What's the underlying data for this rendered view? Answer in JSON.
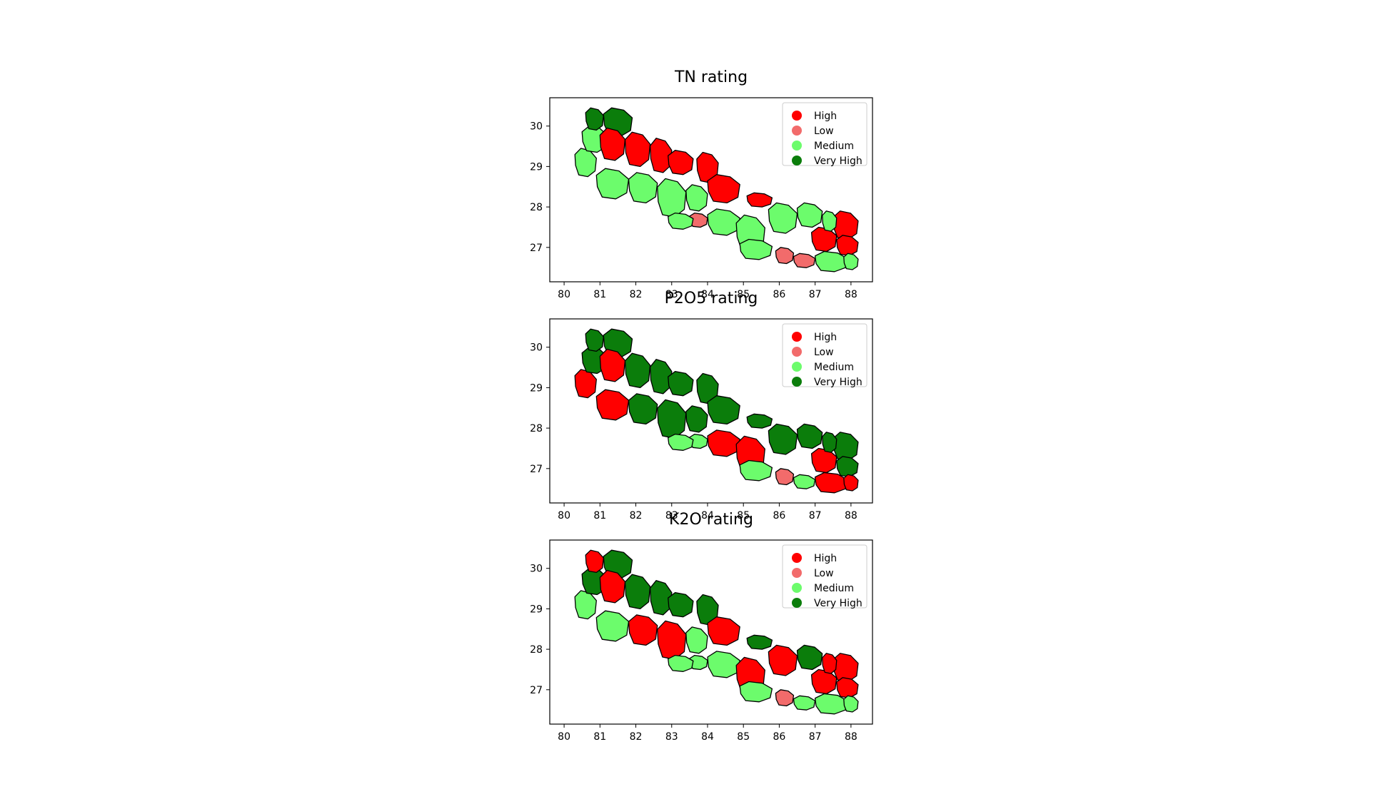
{
  "colors": {
    "High": "#ff0000",
    "Low": "#f26b6b",
    "Medium": "#6cfc6c",
    "Very High": "#0b7d0b"
  },
  "legend": {
    "placement": "top-right",
    "entries": [
      "High",
      "Low",
      "Medium",
      "Very High"
    ]
  },
  "xticks": [
    80,
    81,
    82,
    83,
    84,
    85,
    86,
    87,
    88
  ],
  "yticks": [
    27,
    28,
    29,
    30
  ],
  "xlim": [
    79.6,
    88.6
  ],
  "ylim": [
    26.15,
    30.7
  ],
  "chart_data": [
    {
      "type": "choropleth",
      "title": "TN rating",
      "legend_entries": [
        "High",
        "Low",
        "Medium",
        "Very High"
      ],
      "regions": [
        {
          "lon": [
            80.3,
            80.9
          ],
          "lat": [
            28.75,
            29.45
          ],
          "rating": "Medium"
        },
        {
          "lon": [
            80.5,
            81.2
          ],
          "lat": [
            29.35,
            30.0
          ],
          "rating": "Medium"
        },
        {
          "lon": [
            80.6,
            81.1
          ],
          "lat": [
            29.9,
            30.45
          ],
          "rating": "Very High"
        },
        {
          "lon": [
            81.1,
            81.9
          ],
          "lat": [
            29.75,
            30.45
          ],
          "rating": "Very High"
        },
        {
          "lon": [
            81.0,
            81.7
          ],
          "lat": [
            29.15,
            29.95
          ],
          "rating": "High"
        },
        {
          "lon": [
            81.7,
            82.4
          ],
          "lat": [
            29.0,
            29.85
          ],
          "rating": "High"
        },
        {
          "lon": [
            82.4,
            83.0
          ],
          "lat": [
            28.85,
            29.7
          ],
          "rating": "High"
        },
        {
          "lon": [
            82.9,
            83.6
          ],
          "lat": [
            28.8,
            29.4
          ],
          "rating": "High"
        },
        {
          "lon": [
            83.7,
            84.3
          ],
          "lat": [
            28.6,
            29.35
          ],
          "rating": "High"
        },
        {
          "lon": [
            84.0,
            84.9
          ],
          "lat": [
            28.1,
            28.8
          ],
          "rating": "High"
        },
        {
          "lon": [
            85.1,
            85.8
          ],
          "lat": [
            28.0,
            28.35
          ],
          "rating": "High"
        },
        {
          "lon": [
            86.9,
            87.6
          ],
          "lat": [
            26.9,
            27.5
          ],
          "rating": "High"
        },
        {
          "lon": [
            87.5,
            88.2
          ],
          "lat": [
            27.2,
            27.9
          ],
          "rating": "High"
        },
        {
          "lon": [
            87.6,
            88.2
          ],
          "lat": [
            26.8,
            27.3
          ],
          "rating": "High"
        },
        {
          "lon": [
            83.5,
            84.0
          ],
          "lat": [
            27.5,
            27.85
          ],
          "rating": "Low"
        },
        {
          "lon": [
            85.9,
            86.4
          ],
          "lat": [
            26.6,
            27.0
          ],
          "rating": "Low"
        },
        {
          "lon": [
            86.4,
            87.0
          ],
          "lat": [
            26.5,
            26.85
          ],
          "rating": "Low"
        },
        {
          "lon": [
            80.9,
            81.8
          ],
          "lat": [
            28.2,
            28.95
          ],
          "rating": "Medium"
        },
        {
          "lon": [
            81.8,
            82.6
          ],
          "lat": [
            28.1,
            28.85
          ],
          "rating": "Medium"
        },
        {
          "lon": [
            82.6,
            83.4
          ],
          "lat": [
            27.75,
            28.7
          ],
          "rating": "Medium"
        },
        {
          "lon": [
            83.4,
            84.0
          ],
          "lat": [
            27.9,
            28.55
          ],
          "rating": "Medium"
        },
        {
          "lon": [
            82.9,
            83.6
          ],
          "lat": [
            27.45,
            27.85
          ],
          "rating": "Medium"
        },
        {
          "lon": [
            84.0,
            84.9
          ],
          "lat": [
            27.3,
            27.95
          ],
          "rating": "Medium"
        },
        {
          "lon": [
            84.8,
            85.6
          ],
          "lat": [
            26.9,
            27.8
          ],
          "rating": "Medium"
        },
        {
          "lon": [
            85.7,
            86.5
          ],
          "lat": [
            27.35,
            28.1
          ],
          "rating": "Medium"
        },
        {
          "lon": [
            86.5,
            87.2
          ],
          "lat": [
            27.5,
            28.1
          ],
          "rating": "Medium"
        },
        {
          "lon": [
            87.2,
            87.6
          ],
          "lat": [
            27.4,
            27.9
          ],
          "rating": "Medium"
        },
        {
          "lon": [
            84.9,
            85.8
          ],
          "lat": [
            26.7,
            27.2
          ],
          "rating": "Medium"
        },
        {
          "lon": [
            87.0,
            87.9
          ],
          "lat": [
            26.4,
            26.9
          ],
          "rating": "Medium"
        },
        {
          "lon": [
            87.8,
            88.2
          ],
          "lat": [
            26.45,
            26.85
          ],
          "rating": "Medium"
        }
      ]
    },
    {
      "type": "choropleth",
      "title": "P2O5 rating",
      "legend_entries": [
        "High",
        "Low",
        "Medium",
        "Very High"
      ],
      "regions": [
        {
          "lon": [
            80.3,
            80.9
          ],
          "lat": [
            28.75,
            29.45
          ],
          "rating": "High"
        },
        {
          "lon": [
            80.5,
            81.2
          ],
          "lat": [
            29.35,
            30.0
          ],
          "rating": "Very High"
        },
        {
          "lon": [
            80.6,
            81.1
          ],
          "lat": [
            29.9,
            30.45
          ],
          "rating": "Very High"
        },
        {
          "lon": [
            81.1,
            81.9
          ],
          "lat": [
            29.75,
            30.45
          ],
          "rating": "Very High"
        },
        {
          "lon": [
            81.0,
            81.7
          ],
          "lat": [
            29.15,
            29.95
          ],
          "rating": "High"
        },
        {
          "lon": [
            81.7,
            82.4
          ],
          "lat": [
            29.0,
            29.85
          ],
          "rating": "Very High"
        },
        {
          "lon": [
            82.4,
            83.0
          ],
          "lat": [
            28.85,
            29.7
          ],
          "rating": "Very High"
        },
        {
          "lon": [
            82.9,
            83.6
          ],
          "lat": [
            28.8,
            29.4
          ],
          "rating": "Very High"
        },
        {
          "lon": [
            83.7,
            84.3
          ],
          "lat": [
            28.6,
            29.35
          ],
          "rating": "Very High"
        },
        {
          "lon": [
            84.0,
            84.9
          ],
          "lat": [
            28.1,
            28.8
          ],
          "rating": "Very High"
        },
        {
          "lon": [
            85.1,
            85.8
          ],
          "lat": [
            28.0,
            28.35
          ],
          "rating": "Very High"
        },
        {
          "lon": [
            86.9,
            87.6
          ],
          "lat": [
            26.9,
            27.5
          ],
          "rating": "High"
        },
        {
          "lon": [
            87.5,
            88.2
          ],
          "lat": [
            27.2,
            27.9
          ],
          "rating": "Very High"
        },
        {
          "lon": [
            87.6,
            88.2
          ],
          "lat": [
            26.8,
            27.3
          ],
          "rating": "Very High"
        },
        {
          "lon": [
            83.5,
            84.0
          ],
          "lat": [
            27.5,
            27.85
          ],
          "rating": "Medium"
        },
        {
          "lon": [
            85.9,
            86.4
          ],
          "lat": [
            26.6,
            27.0
          ],
          "rating": "Low"
        },
        {
          "lon": [
            86.4,
            87.0
          ],
          "lat": [
            26.5,
            26.85
          ],
          "rating": "Medium"
        },
        {
          "lon": [
            80.9,
            81.8
          ],
          "lat": [
            28.2,
            28.95
          ],
          "rating": "High"
        },
        {
          "lon": [
            81.8,
            82.6
          ],
          "lat": [
            28.1,
            28.85
          ],
          "rating": "Very High"
        },
        {
          "lon": [
            82.6,
            83.4
          ],
          "lat": [
            27.75,
            28.7
          ],
          "rating": "Very High"
        },
        {
          "lon": [
            83.4,
            84.0
          ],
          "lat": [
            27.9,
            28.55
          ],
          "rating": "Very High"
        },
        {
          "lon": [
            82.9,
            83.6
          ],
          "lat": [
            27.45,
            27.85
          ],
          "rating": "Medium"
        },
        {
          "lon": [
            84.0,
            84.9
          ],
          "lat": [
            27.3,
            27.95
          ],
          "rating": "High"
        },
        {
          "lon": [
            84.8,
            85.6
          ],
          "lat": [
            26.9,
            27.8
          ],
          "rating": "High"
        },
        {
          "lon": [
            85.7,
            86.5
          ],
          "lat": [
            27.35,
            28.1
          ],
          "rating": "Very High"
        },
        {
          "lon": [
            86.5,
            87.2
          ],
          "lat": [
            27.5,
            28.1
          ],
          "rating": "Very High"
        },
        {
          "lon": [
            87.2,
            87.6
          ],
          "lat": [
            27.4,
            27.9
          ],
          "rating": "Very High"
        },
        {
          "lon": [
            84.9,
            85.8
          ],
          "lat": [
            26.7,
            27.2
          ],
          "rating": "Medium"
        },
        {
          "lon": [
            87.0,
            87.9
          ],
          "lat": [
            26.4,
            26.9
          ],
          "rating": "High"
        },
        {
          "lon": [
            87.8,
            88.2
          ],
          "lat": [
            26.45,
            26.85
          ],
          "rating": "High"
        }
      ]
    },
    {
      "type": "choropleth",
      "title": "K2O rating",
      "legend_entries": [
        "High",
        "Low",
        "Medium",
        "Very High"
      ],
      "regions": [
        {
          "lon": [
            80.3,
            80.9
          ],
          "lat": [
            28.75,
            29.45
          ],
          "rating": "Medium"
        },
        {
          "lon": [
            80.5,
            81.2
          ],
          "lat": [
            29.35,
            30.0
          ],
          "rating": "Very High"
        },
        {
          "lon": [
            80.6,
            81.1
          ],
          "lat": [
            29.9,
            30.45
          ],
          "rating": "High"
        },
        {
          "lon": [
            81.1,
            81.9
          ],
          "lat": [
            29.75,
            30.45
          ],
          "rating": "Very High"
        },
        {
          "lon": [
            81.0,
            81.7
          ],
          "lat": [
            29.15,
            29.95
          ],
          "rating": "High"
        },
        {
          "lon": [
            81.7,
            82.4
          ],
          "lat": [
            29.0,
            29.85
          ],
          "rating": "Very High"
        },
        {
          "lon": [
            82.4,
            83.0
          ],
          "lat": [
            28.85,
            29.7
          ],
          "rating": "Very High"
        },
        {
          "lon": [
            82.9,
            83.6
          ],
          "lat": [
            28.8,
            29.4
          ],
          "rating": "Very High"
        },
        {
          "lon": [
            83.7,
            84.3
          ],
          "lat": [
            28.6,
            29.35
          ],
          "rating": "Very High"
        },
        {
          "lon": [
            84.0,
            84.9
          ],
          "lat": [
            28.1,
            28.8
          ],
          "rating": "High"
        },
        {
          "lon": [
            85.1,
            85.8
          ],
          "lat": [
            28.0,
            28.35
          ],
          "rating": "Very High"
        },
        {
          "lon": [
            86.9,
            87.6
          ],
          "lat": [
            26.9,
            27.5
          ],
          "rating": "High"
        },
        {
          "lon": [
            87.5,
            88.2
          ],
          "lat": [
            27.2,
            27.9
          ],
          "rating": "High"
        },
        {
          "lon": [
            87.6,
            88.2
          ],
          "lat": [
            26.8,
            27.3
          ],
          "rating": "High"
        },
        {
          "lon": [
            83.5,
            84.0
          ],
          "lat": [
            27.5,
            27.85
          ],
          "rating": "Medium"
        },
        {
          "lon": [
            85.9,
            86.4
          ],
          "lat": [
            26.6,
            27.0
          ],
          "rating": "Low"
        },
        {
          "lon": [
            86.4,
            87.0
          ],
          "lat": [
            26.5,
            26.85
          ],
          "rating": "Medium"
        },
        {
          "lon": [
            80.9,
            81.8
          ],
          "lat": [
            28.2,
            28.95
          ],
          "rating": "Medium"
        },
        {
          "lon": [
            81.8,
            82.6
          ],
          "lat": [
            28.1,
            28.85
          ],
          "rating": "High"
        },
        {
          "lon": [
            82.6,
            83.4
          ],
          "lat": [
            27.75,
            28.7
          ],
          "rating": "High"
        },
        {
          "lon": [
            83.4,
            84.0
          ],
          "lat": [
            27.9,
            28.55
          ],
          "rating": "Medium"
        },
        {
          "lon": [
            82.9,
            83.6
          ],
          "lat": [
            27.45,
            27.85
          ],
          "rating": "Medium"
        },
        {
          "lon": [
            84.0,
            84.9
          ],
          "lat": [
            27.3,
            27.95
          ],
          "rating": "Medium"
        },
        {
          "lon": [
            84.8,
            85.6
          ],
          "lat": [
            26.9,
            27.8
          ],
          "rating": "High"
        },
        {
          "lon": [
            85.7,
            86.5
          ],
          "lat": [
            27.35,
            28.1
          ],
          "rating": "High"
        },
        {
          "lon": [
            86.5,
            87.2
          ],
          "lat": [
            27.5,
            28.1
          ],
          "rating": "Very High"
        },
        {
          "lon": [
            87.2,
            87.6
          ],
          "lat": [
            27.4,
            27.9
          ],
          "rating": "High"
        },
        {
          "lon": [
            84.9,
            85.8
          ],
          "lat": [
            26.7,
            27.2
          ],
          "rating": "Medium"
        },
        {
          "lon": [
            87.0,
            87.9
          ],
          "lat": [
            26.4,
            26.9
          ],
          "rating": "Medium"
        },
        {
          "lon": [
            87.8,
            88.2
          ],
          "lat": [
            26.45,
            26.85
          ],
          "rating": "Medium"
        }
      ]
    }
  ]
}
